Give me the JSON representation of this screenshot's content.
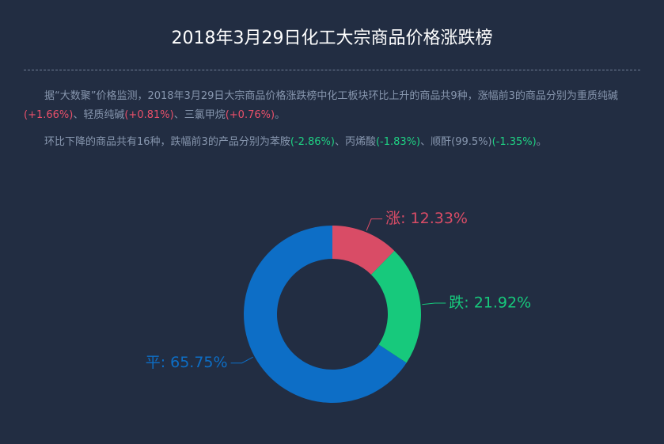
{
  "header": {
    "title": "2018年3月29日化工大宗商品价格涨跌榜"
  },
  "paragraphs": [
    [
      {
        "text": "据“大数聚”价格监测，2018年3月29日大宗商品价格涨跌榜中化工板块环比上升的商品共9种，涨幅前3的商品分别为重质纯碱"
      },
      {
        "text": "(+1.66%)",
        "color": "#e8506a"
      },
      {
        "text": "、轻质纯碱"
      },
      {
        "text": "(+0.81%)",
        "color": "#e8506a"
      },
      {
        "text": "、三氯甲烷"
      },
      {
        "text": "(+0.76%)",
        "color": "#e8506a"
      },
      {
        "text": "。"
      }
    ],
    [
      {
        "text": "环比下降的商品共有16种，跌幅前3的产品分别为苯胺"
      },
      {
        "text": "(-2.86%)",
        "color": "#1fd083"
      },
      {
        "text": "、丙烯酸"
      },
      {
        "text": "(-1.83%)",
        "color": "#1fd083"
      },
      {
        "text": "、顺酐(99.5%)"
      },
      {
        "text": "(-1.35%)",
        "color": "#1fd083"
      },
      {
        "text": "。"
      }
    ]
  ],
  "chart_data": {
    "type": "donut",
    "values": [
      12.33,
      21.92,
      65.75
    ],
    "value_labels": [
      "涨: 12.33%",
      "跌: 21.92%",
      "平: 65.75%"
    ],
    "colors": [
      "#d94c66",
      "#17c97c",
      "#0d6ec6"
    ]
  }
}
